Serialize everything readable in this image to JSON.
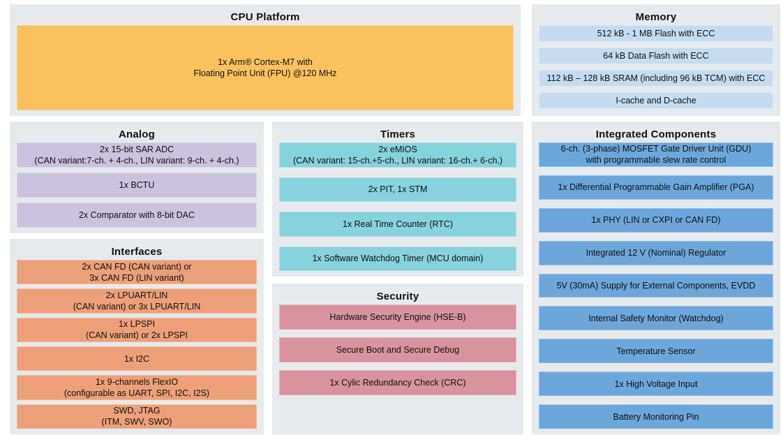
{
  "colors": {
    "page_background": "#FFFFFF",
    "section_background": "#E7EAED",
    "cpu_fill": "#FAC25C",
    "memory_fill": "#C5DCF0",
    "analog_fill": "#CBC3DD",
    "timers_fill": "#87D3DC",
    "interfaces_fill": "#EDA078",
    "security_fill": "#D9939E",
    "integrated_fill": "#6CA7DC",
    "text_color": "#111111"
  },
  "sections": {
    "cpu_platform": {
      "title": "CPU Platform",
      "items": [
        {
          "lines": [
            "1x Arm® Cortex-M7 with",
            "Floating Point Unit (FPU) @120 MHz"
          ]
        }
      ]
    },
    "memory": {
      "title": "Memory",
      "items": [
        {
          "lines": [
            "512 kB - 1 MB Flash with ECC"
          ]
        },
        {
          "lines": [
            "64 kB Data Flash with ECC"
          ]
        },
        {
          "lines": [
            "112 kB – 128 kB SRAM (including 96 kB TCM) with ECC"
          ]
        },
        {
          "lines": [
            "I-cache and D-cache"
          ]
        }
      ]
    },
    "analog": {
      "title": "Analog",
      "items": [
        {
          "lines": [
            "2x 15-bit SAR ADC",
            "(CAN variant:7-ch. + 4-ch., LIN variant: 9-ch. + 4-ch.)"
          ]
        },
        {
          "lines": [
            "1x BCTU"
          ]
        },
        {
          "lines": [
            "2x Comparator with 8-bit DAC"
          ]
        }
      ]
    },
    "timers": {
      "title": "Timers",
      "items": [
        {
          "lines": [
            "2x eMIOS",
            "(CAN variant: 15-ch.+5-ch., LIN variant: 16-ch.+ 6-ch.)"
          ]
        },
        {
          "lines": [
            "2x PIT, 1x STM"
          ]
        },
        {
          "lines": [
            "1x Real Time Counter (RTC)"
          ]
        },
        {
          "lines": [
            "1x Software Watchdog Timer (MCU domain)"
          ]
        }
      ]
    },
    "interfaces": {
      "title": "Interfaces",
      "items": [
        {
          "lines": [
            "2x CAN FD (CAN variant) or",
            "3x CAN FD (LIN variant)"
          ]
        },
        {
          "lines": [
            "2x LPUART/LIN",
            "(CAN variant) or 3x LPUART/LIN"
          ]
        },
        {
          "lines": [
            "1x LPSPI",
            "(CAN variant) or 2x LPSPI"
          ]
        },
        {
          "lines": [
            "1x I2C"
          ]
        },
        {
          "lines": [
            "1x 9-channels FlexIO",
            "(configurable as UART, SPI, I2C, I2S)"
          ]
        },
        {
          "lines": [
            "SWD, JTAG",
            "(ITM, SWV, SWO)"
          ]
        }
      ]
    },
    "security": {
      "title": "Security",
      "items": [
        {
          "lines": [
            "Hardware Security Engine (HSE-B)"
          ]
        },
        {
          "lines": [
            "Secure Boot and Secure Debug"
          ]
        },
        {
          "lines": [
            "1x Cylic Redundancy Check (CRC)"
          ]
        }
      ]
    },
    "integrated_components": {
      "title": "Integrated Components",
      "items": [
        {
          "lines": [
            "6-ch. (3-phase) MOSFET Gate Driver Unit (GDU)",
            "with programmable slew rate control"
          ]
        },
        {
          "lines": [
            "1x Differential Programmable Gain Amplifier (PGA)"
          ]
        },
        {
          "lines": [
            "1x PHY (LIN or CXPI or CAN FD)"
          ]
        },
        {
          "lines": [
            "Integrated 12 V (Nominal) Regulator"
          ]
        },
        {
          "lines": [
            "5V (30mA) Supply for External Components, EVDD"
          ]
        },
        {
          "lines": [
            "Internal Safety Monitor (Watchdog)"
          ]
        },
        {
          "lines": [
            "Temperature Sensor"
          ]
        },
        {
          "lines": [
            "1x High Voltage Input"
          ]
        },
        {
          "lines": [
            "Battery Monitoring Pin"
          ]
        }
      ]
    }
  }
}
